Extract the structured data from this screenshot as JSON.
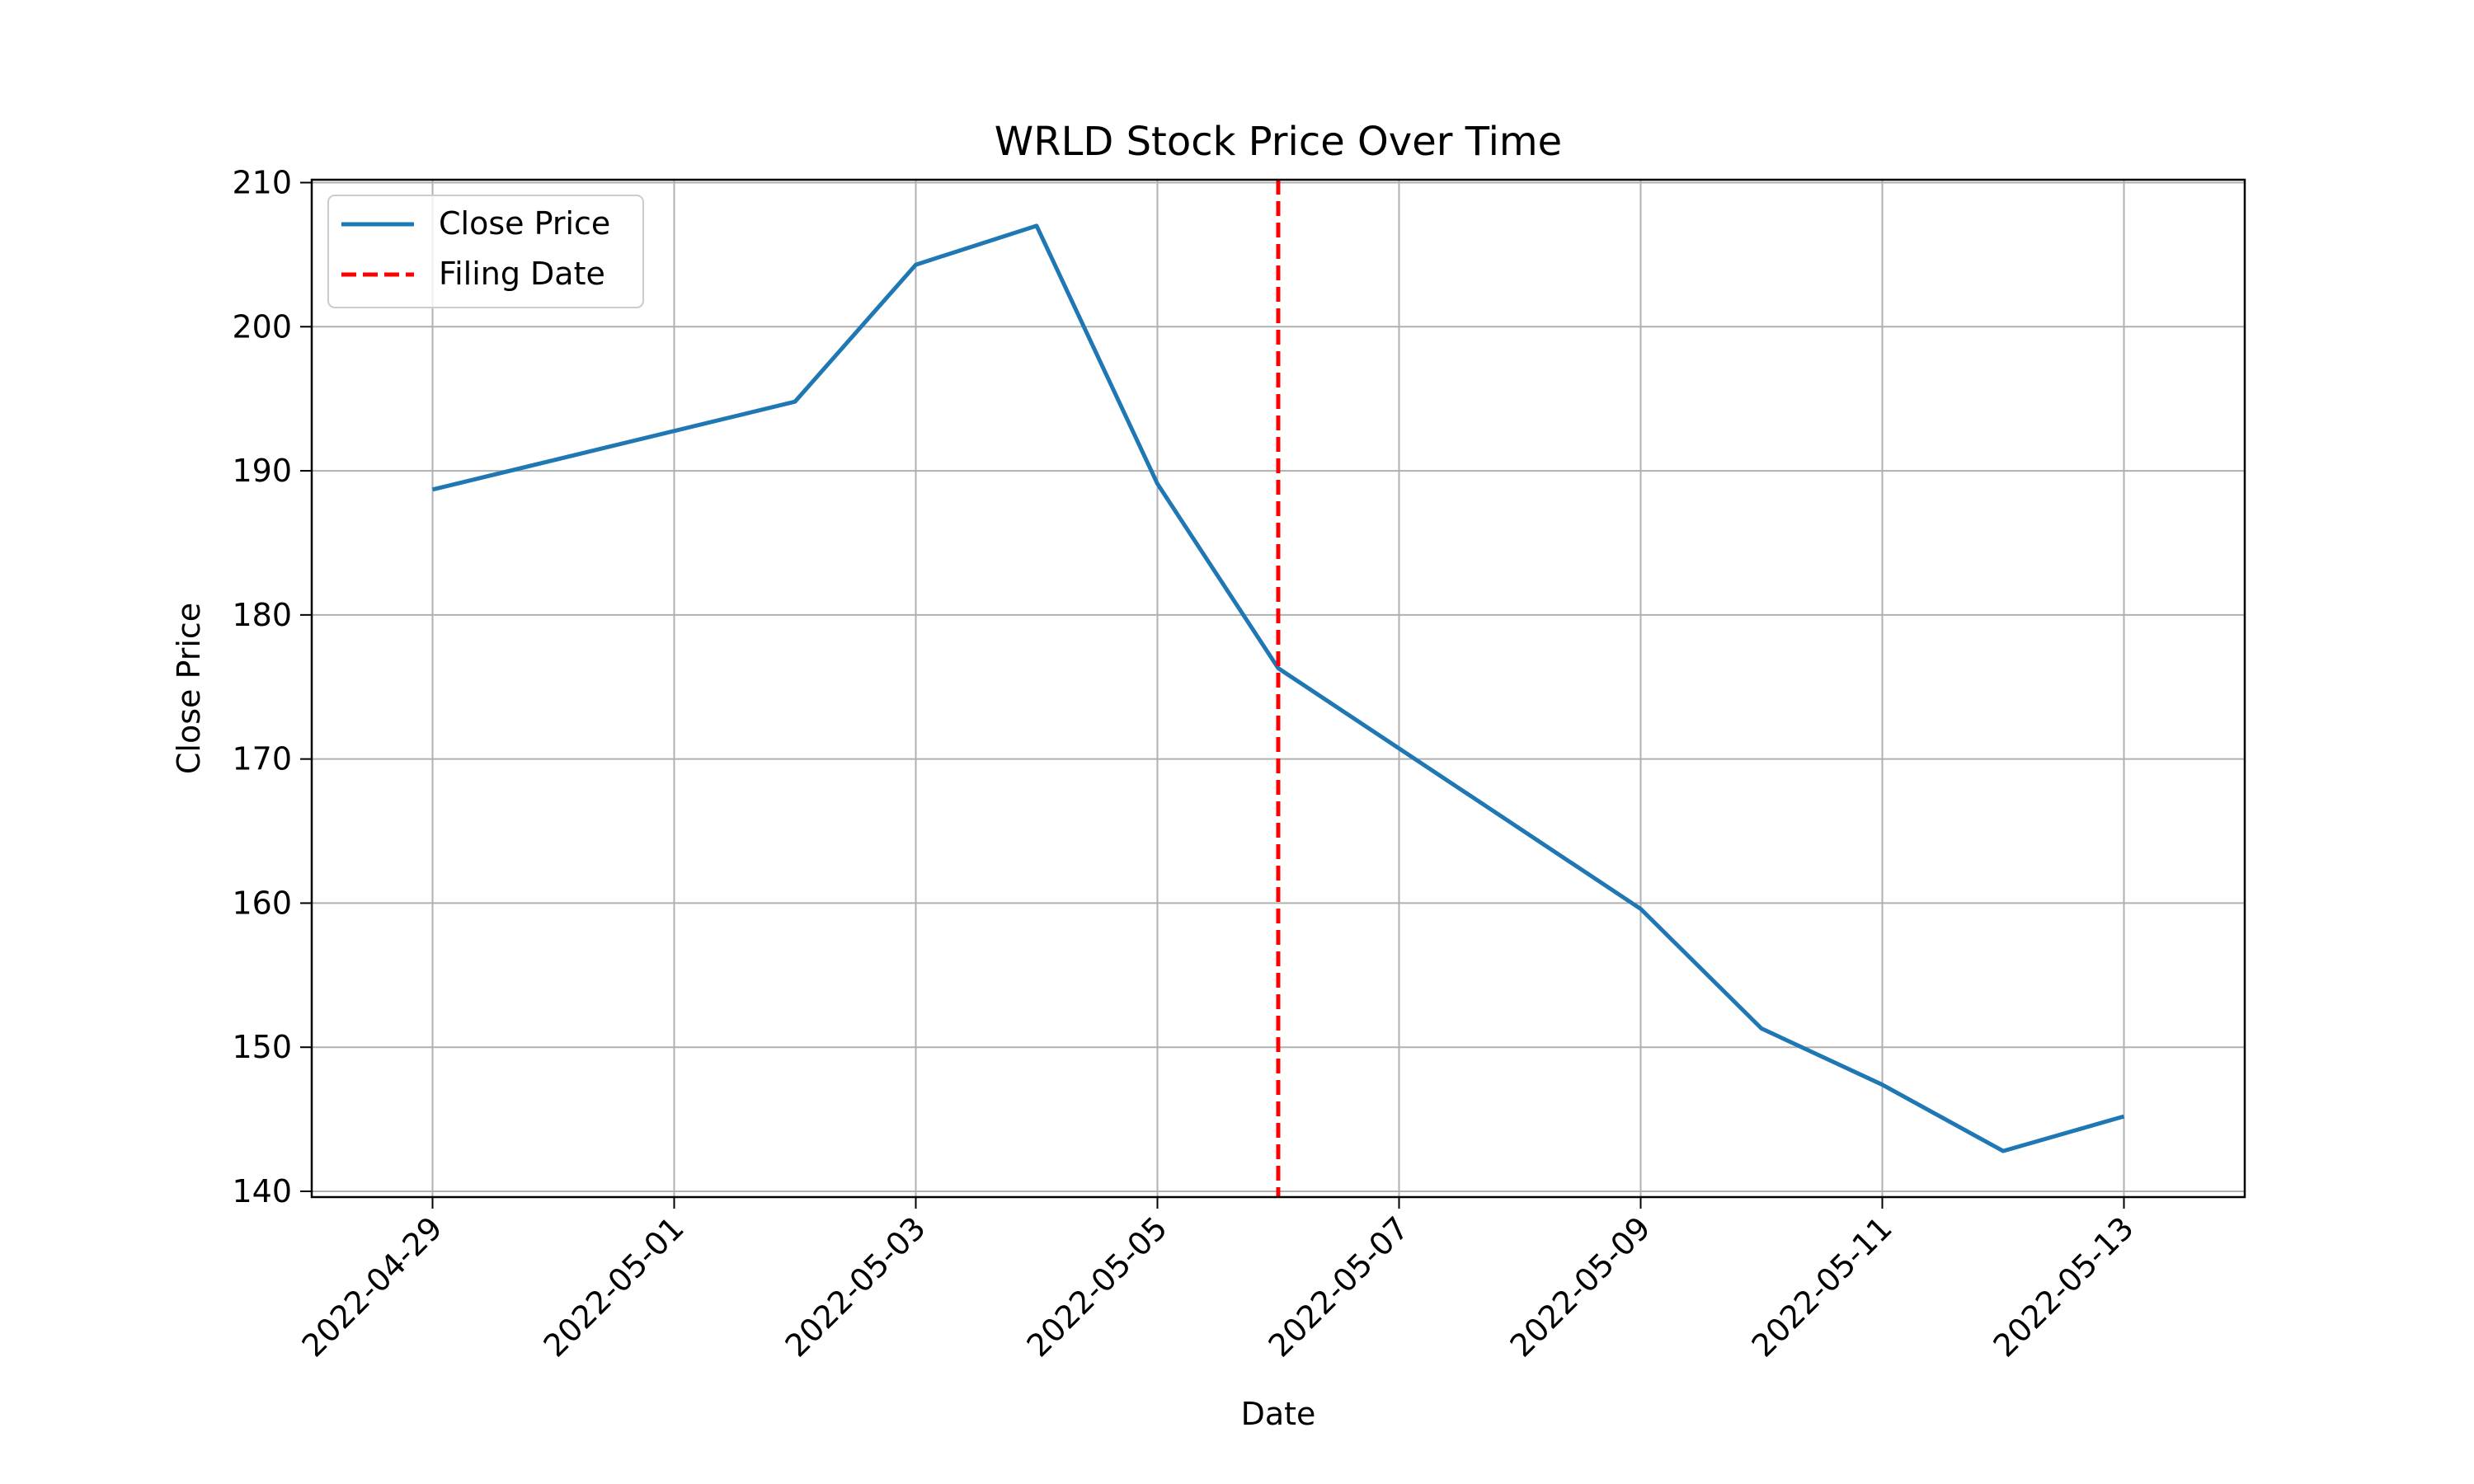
{
  "chart_data": {
    "type": "line",
    "title": "WRLD Stock Price Over Time",
    "xlabel": "Date",
    "ylabel": "Close Price",
    "x_ticks": [
      "2022-04-29",
      "2022-05-01",
      "2022-05-03",
      "2022-05-05",
      "2022-05-07",
      "2022-05-09",
      "2022-05-11",
      "2022-05-13"
    ],
    "y_ticks": [
      140,
      150,
      160,
      170,
      180,
      190,
      200,
      210
    ],
    "xlim": [
      "2022-04-28",
      "2022-05-14"
    ],
    "ylim": [
      139.6,
      210.2
    ],
    "grid": true,
    "legend_position": "upper-left",
    "series": [
      {
        "name": "Close Price",
        "color": "#1f77b4",
        "points": [
          {
            "x": "2022-04-29",
            "y": 188.7
          },
          {
            "x": "2022-05-02",
            "y": 194.8
          },
          {
            "x": "2022-05-03",
            "y": 204.3
          },
          {
            "x": "2022-05-04",
            "y": 207.0
          },
          {
            "x": "2022-05-05",
            "y": 189.1
          },
          {
            "x": "2022-05-06",
            "y": 176.3
          },
          {
            "x": "2022-05-09",
            "y": 159.6
          },
          {
            "x": "2022-05-10",
            "y": 151.3
          },
          {
            "x": "2022-05-11",
            "y": 147.4
          },
          {
            "x": "2022-05-12",
            "y": 142.8
          },
          {
            "x": "2022-05-13",
            "y": 145.2
          }
        ]
      }
    ],
    "vlines": [
      {
        "name": "Filing Date",
        "x": "2022-05-06",
        "color": "#ff0000",
        "style": "dashed"
      }
    ]
  }
}
